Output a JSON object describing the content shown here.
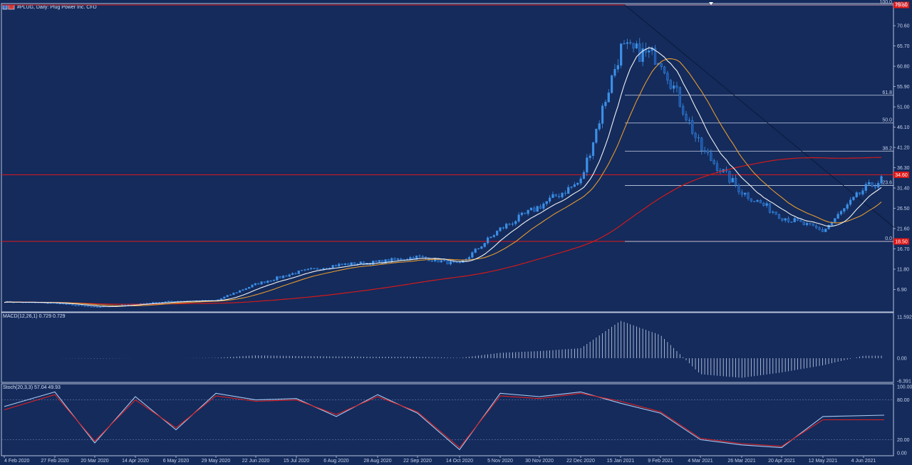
{
  "window": {
    "title": "#PLUG, Daily:  Plug Power Inc. CFD"
  },
  "colors": {
    "background": "#142b5c",
    "frame": "#b9c3d9",
    "candle": "#3d8fe6",
    "ma_fast": "#f2f2f2",
    "ma_mid": "#e69a2e",
    "ma_slow": "#d11a1a",
    "level_line": "#e01818",
    "fib_line": "#c9d1e6",
    "stoch_main": "#aac8f0",
    "stoch_signal": "#e02020"
  },
  "chart_data": [
    {
      "type": "candlestick",
      "title": "#PLUG, Daily:  Plug Power Inc. CFD",
      "ylim": [
        2.0,
        75.6
      ],
      "y_ticks": [
        "70.60",
        "65.70",
        "60.80",
        "55.90",
        "51.00",
        "46.10",
        "41.20",
        "36.30",
        "31.40",
        "26.50",
        "21.60",
        "16.70",
        "11.80",
        "6.90"
      ],
      "top_tick": "100.0",
      "x_date_labels": [
        "4 Feb 2020",
        "27 Feb 2020",
        "20 Mar 2020",
        "14 Apr 2020",
        "6 May 2020",
        "29 May 2020",
        "22 Jun 2020",
        "15 Jul 2020",
        "6 Aug 2020",
        "28 Aug 2020",
        "22 Sep 2020",
        "14 Oct 2020",
        "5 Nov 2020",
        "30 Nov 2020",
        "22 Dec 2020",
        "15 Jan 2021",
        "9 Feb 2021",
        "4 Mar 2021",
        "26 Mar 2021",
        "20 Apr 2021",
        "12 May 2021",
        "4 Jun 2021"
      ],
      "approx_close_by_label_date": [
        3.9,
        3.6,
        2.6,
        3.4,
        4.1,
        4.2,
        8.2,
        11.0,
        12.8,
        13.5,
        14.8,
        12.9,
        21.5,
        27.0,
        33.0,
        65.0,
        63.0,
        41.0,
        30.5,
        24.5,
        21.0,
        31.0
      ],
      "last_close_approx": 33.7,
      "horizontal_levels": [
        {
          "name": "top",
          "value": 75.6,
          "tag": "75.60"
        },
        {
          "name": "resistance",
          "value": 34.6,
          "tag": "34.60"
        },
        {
          "name": "support",
          "value": 18.5,
          "tag": "18.50"
        }
      ],
      "fibonacci": {
        "high": 75.6,
        "low": 18.5,
        "levels": [
          {
            "ratio": "0.0",
            "value": 18.5
          },
          {
            "ratio": "23.6",
            "value": 32.0
          },
          {
            "ratio": "38.2",
            "value": 40.3
          },
          {
            "ratio": "50.0",
            "value": 47.1
          },
          {
            "ratio": "61.8",
            "value": 53.8
          },
          {
            "ratio": "100.0",
            "value": 75.6
          }
        ]
      },
      "trendline": {
        "from": [
          "15 Jan 2021",
          75.6
        ],
        "to": [
          "4 Jun 2021",
          22.0
        ]
      }
    },
    {
      "type": "histogram",
      "title": "MACD(12,26,1) 0.729 0.729",
      "ylim": [
        -6.391,
        11.592
      ],
      "y_ticks": [
        "11.592",
        "0.00",
        "-6.391"
      ],
      "approx_values_by_label_date": [
        0.0,
        0.0,
        -0.1,
        0.0,
        0.0,
        0.1,
        0.8,
        0.6,
        0.5,
        0.4,
        0.4,
        0.1,
        1.5,
        2.0,
        2.8,
        10.5,
        6.5,
        -4.5,
        -5.5,
        -4.0,
        -2.0,
        0.7
      ]
    },
    {
      "type": "line",
      "title": "Stoch(20,3,3) 57.04 49.93",
      "ylim": [
        0,
        100
      ],
      "y_ticks": [
        "100.00",
        "80.00",
        "20.00",
        "0.00"
      ],
      "series": [
        {
          "name": "%K",
          "values": [
            70,
            92,
            15,
            85,
            35,
            90,
            80,
            82,
            55,
            88,
            60,
            5,
            90,
            85,
            92,
            75,
            60,
            20,
            12,
            8,
            55,
            57
          ]
        },
        {
          "name": "%D",
          "values": [
            65,
            88,
            18,
            80,
            38,
            86,
            78,
            80,
            58,
            85,
            62,
            8,
            86,
            82,
            90,
            78,
            62,
            22,
            14,
            10,
            50,
            50
          ]
        }
      ]
    }
  ]
}
